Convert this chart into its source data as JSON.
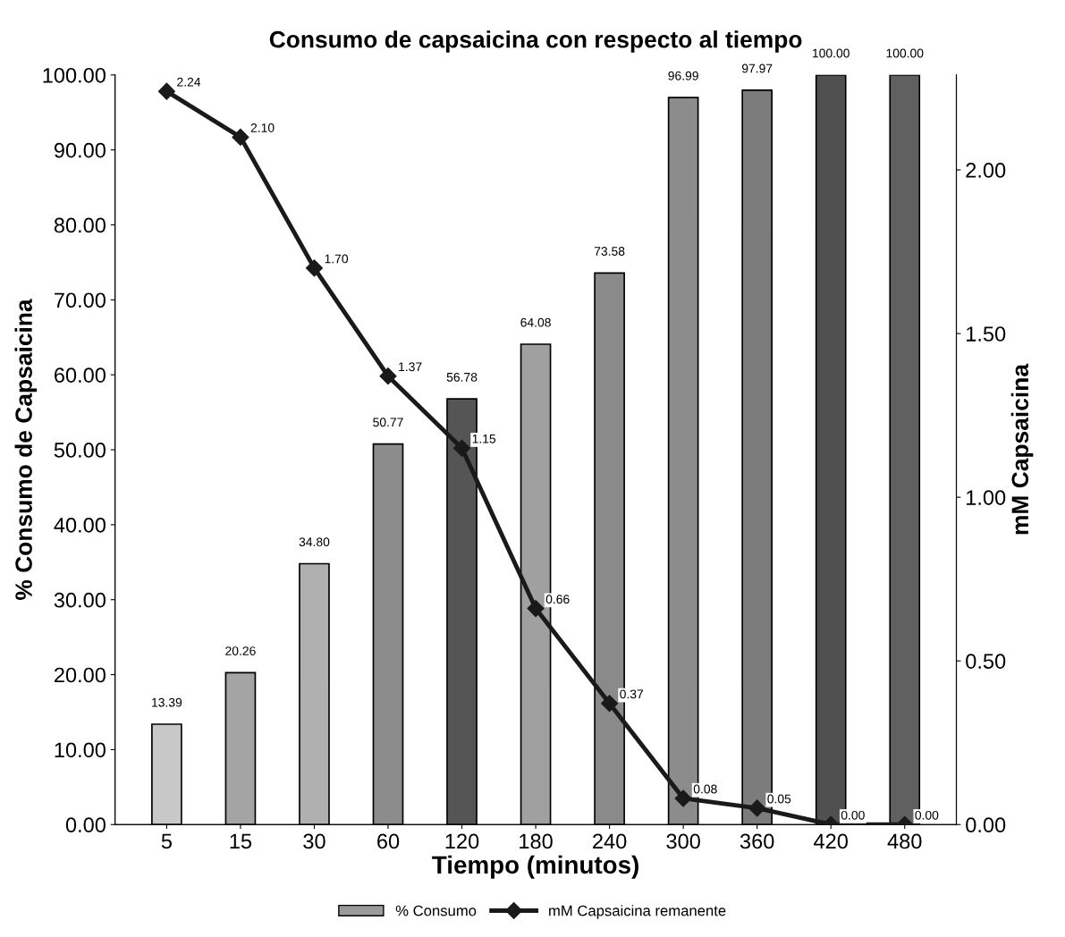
{
  "chart_data": {
    "type": "bar",
    "title": "Consumo de capsaicina con respecto al tiempo",
    "xlabel": "Tiempo (minutos)",
    "ylabel": "% Consumo de Capsaicina",
    "y2label": "mM Capsaicina",
    "categories": [
      "5",
      "15",
      "30",
      "60",
      "120",
      "180",
      "240",
      "300",
      "360",
      "420",
      "480"
    ],
    "series": [
      {
        "name": "% Consumo",
        "colors": [
          "#c8c8c8",
          "#a4a4a4",
          "#b0b0b0",
          "#8c8c8c",
          "#555555",
          "#a0a0a0",
          "#8a8a8a",
          "#8c8c8c",
          "#7c7c7c",
          "#505050",
          "#606060"
        ],
        "color": "#9a9a9a",
        "values": [
          13.39,
          20.26,
          34.8,
          50.77,
          56.78,
          64.08,
          73.58,
          96.99,
          97.97,
          100.0,
          100.0
        ],
        "value_labels": [
          "13.39",
          "20.26",
          "34.80",
          "50.77",
          "56.78",
          "64.08",
          "73.58",
          "96.99",
          "97.97",
          "100.00",
          "100.00"
        ]
      },
      {
        "name": "mM Capsaicina remanente",
        "type": "line",
        "axis": "y2",
        "color": "#1a1a1a",
        "marker": "diamond",
        "line_style": "solid",
        "values": [
          2.24,
          2.1,
          1.7,
          1.37,
          1.15,
          0.66,
          0.37,
          0.08,
          0.05,
          0.0,
          0.0
        ],
        "value_labels": [
          "2.24",
          "2.10",
          "1.70",
          "1.37",
          "1.15",
          "0.66",
          "0.37",
          "0.08",
          "0.05",
          "0.00",
          "0.00"
        ]
      }
    ],
    "ylim": [
      0,
      100
    ],
    "yticks": [
      {
        "value": 0,
        "label": "0.00"
      },
      {
        "value": 10,
        "label": "10.00"
      },
      {
        "value": 20,
        "label": "20.00"
      },
      {
        "value": 30,
        "label": "30.00"
      },
      {
        "value": 40,
        "label": "40.00"
      },
      {
        "value": 50,
        "label": "50.00"
      },
      {
        "value": 60,
        "label": "60.00"
      },
      {
        "value": 70,
        "label": "70.00"
      },
      {
        "value": 80,
        "label": "80.00"
      },
      {
        "value": 90,
        "label": "90.00"
      },
      {
        "value": 100,
        "label": "100.00"
      }
    ],
    "y2lim": [
      0,
      2.29
    ],
    "y2ticks": [
      {
        "value": 0,
        "label": "0.00"
      },
      {
        "value": 0.5,
        "label": "0.50"
      },
      {
        "value": 1.0,
        "label": "1.00"
      },
      {
        "value": 1.5,
        "label": "1.50"
      },
      {
        "value": 2.0,
        "label": "2.00"
      }
    ],
    "grid": false,
    "legend": "bottom"
  }
}
